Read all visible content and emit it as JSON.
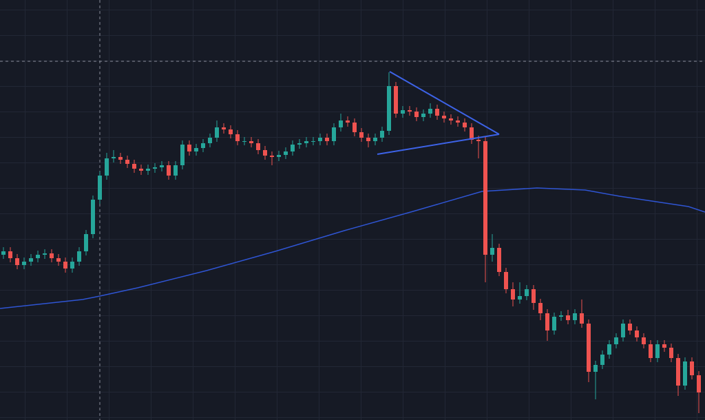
{
  "chart_data": {
    "type": "candlestick",
    "up_color": "#26a69a",
    "down_color": "#ef5350",
    "xlim": [
      -0.5,
      101.9
    ],
    "ylim": [
      0,
      610
    ],
    "open": [
      240,
      245,
      235,
      225,
      230,
      235,
      240,
      242,
      235,
      230,
      220,
      230,
      245,
      270,
      320,
      355,
      380,
      382,
      378,
      372,
      365,
      362,
      365,
      367,
      370,
      355,
      370,
      400,
      390,
      395,
      402,
      410,
      425,
      422,
      415,
      405,
      405,
      402,
      392,
      384,
      382,
      385,
      390,
      400,
      402,
      405,
      405,
      410,
      405,
      425,
      435,
      432,
      418,
      410,
      405,
      410,
      420,
      485,
      445,
      450,
      448,
      440,
      445,
      452,
      442,
      438,
      435,
      432,
      425,
      407,
      405,
      240,
      250,
      215,
      190,
      175,
      180,
      190,
      170,
      155,
      130,
      150,
      152,
      145,
      155,
      140,
      70,
      80,
      95,
      110,
      120,
      140,
      130,
      120,
      110,
      90,
      110,
      105,
      90,
      50,
      85,
      65
    ],
    "high": [
      251,
      251,
      241,
      236,
      241,
      246,
      248,
      248,
      241,
      236,
      236,
      251,
      276,
      326,
      361,
      388,
      392,
      388,
      384,
      378,
      371,
      371,
      373,
      376,
      376,
      376,
      406,
      406,
      401,
      408,
      416,
      435,
      431,
      428,
      421,
      411,
      411,
      408,
      398,
      390,
      391,
      396,
      406,
      408,
      411,
      411,
      416,
      416,
      431,
      445,
      441,
      438,
      424,
      416,
      416,
      426,
      505,
      491,
      456,
      456,
      454,
      451,
      460,
      458,
      448,
      444,
      441,
      438,
      431,
      413,
      411,
      270,
      256,
      221,
      200,
      200,
      196,
      196,
      176,
      161,
      156,
      158,
      160,
      161,
      175,
      146,
      86,
      101,
      116,
      126,
      146,
      146,
      136,
      126,
      116,
      116,
      116,
      111,
      96,
      91,
      91,
      71
    ],
    "low": [
      234,
      229,
      219,
      219,
      224,
      229,
      234,
      229,
      224,
      214,
      214,
      224,
      239,
      264,
      314,
      349,
      374,
      372,
      366,
      359,
      356,
      356,
      359,
      361,
      349,
      349,
      364,
      384,
      384,
      389,
      396,
      404,
      416,
      409,
      399,
      399,
      396,
      386,
      378,
      370,
      376,
      379,
      384,
      394,
      396,
      399,
      399,
      399,
      399,
      419,
      426,
      412,
      404,
      396,
      399,
      404,
      414,
      439,
      439,
      442,
      434,
      434,
      439,
      436,
      432,
      429,
      426,
      419,
      401,
      380,
      200,
      230,
      209,
      184,
      165,
      169,
      174,
      160,
      145,
      115,
      124,
      144,
      139,
      139,
      134,
      55,
      30,
      74,
      89,
      104,
      114,
      124,
      114,
      104,
      84,
      84,
      99,
      84,
      35,
      44,
      59,
      10
    ],
    "close": [
      245,
      235,
      225,
      230,
      235,
      240,
      242,
      235,
      230,
      220,
      230,
      245,
      270,
      320,
      355,
      380,
      382,
      378,
      372,
      365,
      362,
      365,
      367,
      370,
      355,
      370,
      400,
      390,
      395,
      402,
      410,
      425,
      422,
      415,
      405,
      405,
      402,
      392,
      384,
      382,
      385,
      390,
      400,
      402,
      405,
      405,
      410,
      405,
      425,
      435,
      432,
      418,
      410,
      405,
      410,
      420,
      485,
      445,
      450,
      448,
      440,
      445,
      452,
      442,
      438,
      435,
      432,
      425,
      407,
      405,
      240,
      250,
      215,
      190,
      175,
      180,
      190,
      170,
      155,
      130,
      150,
      152,
      145,
      155,
      140,
      70,
      80,
      95,
      110,
      120,
      140,
      130,
      120,
      110,
      90,
      110,
      105,
      90,
      50,
      85,
      65,
      40
    ],
    "moving_average": {
      "color": "#2f55d4",
      "x": [
        -0.5,
        11.5,
        14,
        19.5,
        29.5,
        39.5,
        49.5,
        59.5,
        69.5,
        77.5,
        84.5,
        89.5,
        99.5,
        101.9
      ],
      "values": [
        162,
        175,
        180,
        192,
        217,
        245,
        275,
        303,
        332,
        337,
        334,
        325,
        310,
        302
      ]
    }
  }
}
